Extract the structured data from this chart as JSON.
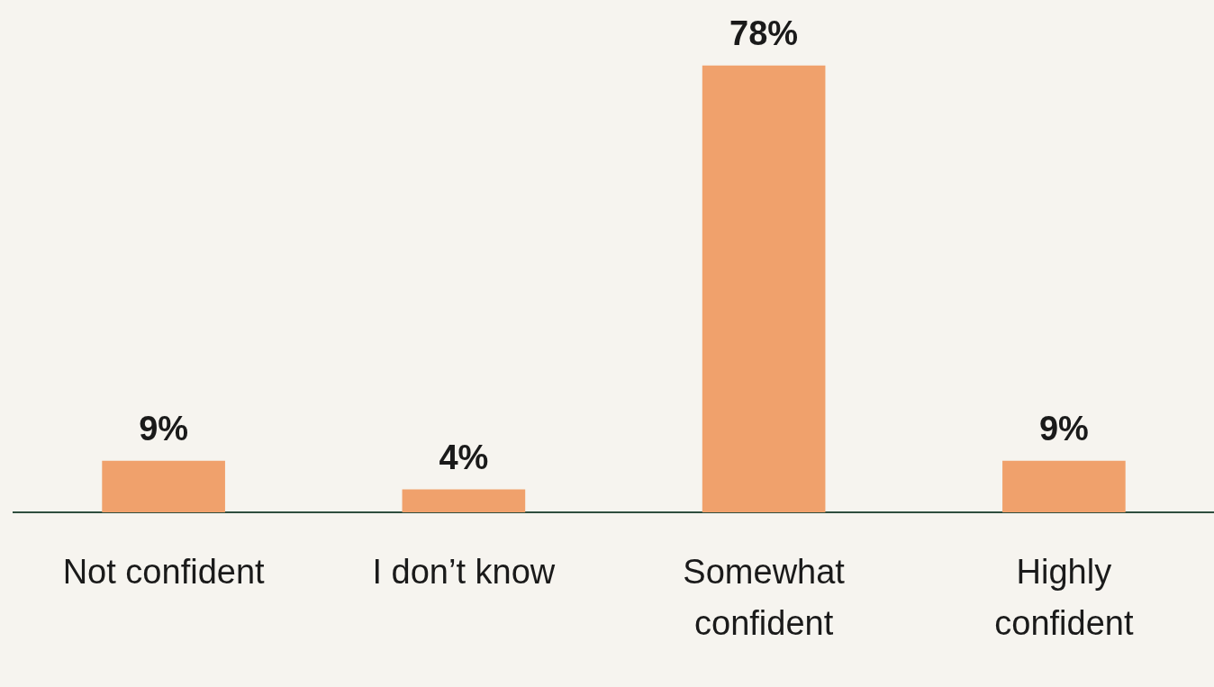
{
  "chart_data": {
    "type": "bar",
    "categories": [
      "Not confident",
      "I don’t know",
      "Somewhat confident",
      "Highly confident"
    ],
    "values": [
      9,
      4,
      78,
      9
    ],
    "value_labels": [
      "9%",
      "4%",
      "78%",
      "9%"
    ],
    "color": "#f0a16c",
    "grid": false
  }
}
